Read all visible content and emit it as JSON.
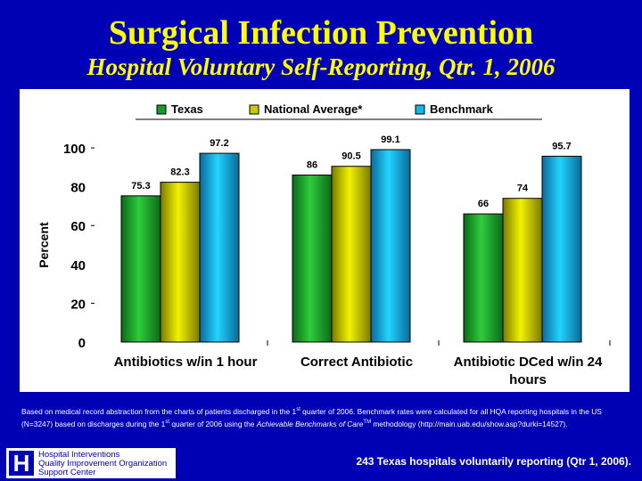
{
  "header": {
    "title": "Surgical Infection Prevention",
    "subtitle": "Hospital Voluntary Self-Reporting, Qtr. 1, 2006"
  },
  "footnote": {
    "text_1": "Based on medical record abstraction from the charts of patients discharged in the 1",
    "sup_1": "st",
    "text_2": " quarter of 2006. Benchmark rates were calculated for all HQA reporting hospitals in the US (N=3247) based on discharges during the 1",
    "sup_2": "st",
    "text_3": " quarter of 2006 using the ",
    "italic": "Achievable Benchmarks of Care",
    "sup_3": "TM",
    "text_4": " methodology (http://main.uab.edu/show.asp?durki=14527)."
  },
  "logo": {
    "letter": "H",
    "lines": [
      "Hospital Interventions",
      "Quality Improvement Organization",
      "Support Center"
    ]
  },
  "bottom_note": "243 Texas hospitals voluntarily reporting (Qtr 1, 2006).",
  "colors": {
    "background": "#0000b4",
    "title": "#ffff00",
    "texas": "#1a9a2a",
    "national": "#c8c800",
    "benchmark": "#10b8e8"
  },
  "chart_data": {
    "type": "bar",
    "title": "",
    "xlabel": "",
    "ylabel": "Percent",
    "ylim": [
      0,
      100
    ],
    "yticks": [
      0,
      20,
      40,
      60,
      80,
      100
    ],
    "grid": false,
    "legend_position": "top",
    "categories": [
      "Antibiotics w/in 1 hour",
      "Correct Antibiotic",
      "Antibiotic DCed w/in 24 hours"
    ],
    "series": [
      {
        "name": "Texas",
        "values": [
          75.3,
          86,
          66
        ]
      },
      {
        "name": "National Average*",
        "values": [
          82.3,
          90.5,
          74
        ]
      },
      {
        "name": "Benchmark",
        "values": [
          97.2,
          99.1,
          95.7
        ]
      }
    ]
  }
}
